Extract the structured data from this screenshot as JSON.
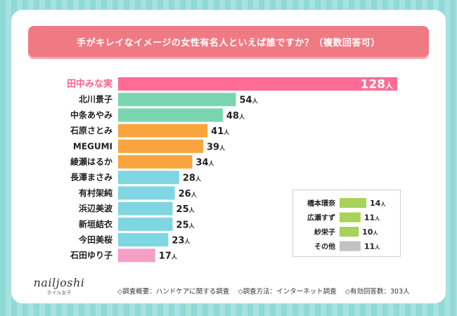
{
  "title": "手がキレイなイメージの女性有名人といえば誰ですか？（複数回答可）",
  "unit": "人",
  "chart_data": {
    "type": "bar",
    "orientation": "horizontal",
    "title": "手がキレイなイメージの女性有名人といえば誰ですか？（複数回答可）",
    "categories": [
      "田中みな実",
      "北川景子",
      "中条あやみ",
      "石原さとみ",
      "MEGUMI",
      "綾瀬はるか",
      "長澤まさみ",
      "有村架純",
      "浜辺美波",
      "新垣結衣",
      "今田美桜",
      "石田ゆり子"
    ],
    "values": [
      128,
      54,
      48,
      41,
      39,
      34,
      28,
      26,
      25,
      25,
      23,
      17
    ],
    "colors": [
      "#ff6b94",
      "#79d6b0",
      "#79d6b0",
      "#f8a53f",
      "#f8a53f",
      "#f8a53f",
      "#7ed6e3",
      "#7ed6e3",
      "#7ed6e3",
      "#7ed6e3",
      "#7ed6e3",
      "#f39fc6"
    ],
    "highlight_label_color": "#ff5f8a",
    "inset": {
      "categories": [
        "橋本環奈",
        "広瀬すず",
        "紗栄子",
        "その他"
      ],
      "values": [
        14,
        11,
        10,
        11
      ],
      "colors": [
        "#a8d25a",
        "#a8d25a",
        "#a8d25a",
        "#c2c2c2"
      ]
    }
  },
  "branding": {
    "logo": "nailjoshi",
    "logo_sub": "ネイル女子"
  },
  "footer": {
    "overview": "◇調査概要：ハンドケアに関する調査",
    "method": "◇調査方法：インターネット調査",
    "responses": "◇有効回答数：303人"
  }
}
